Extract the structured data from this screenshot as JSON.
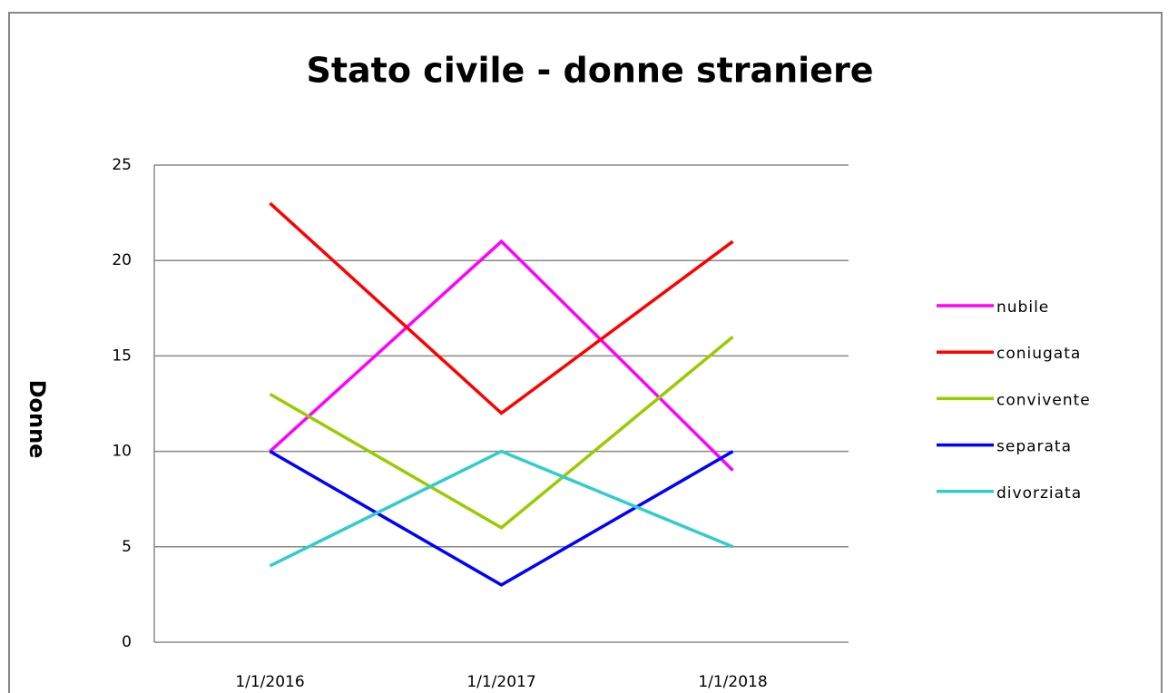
{
  "chart_data": {
    "type": "line",
    "title": "Stato civile - donne straniere",
    "y_label": "Donne",
    "categories": [
      "1/1/2016",
      "1/1/2017",
      "1/1/2018"
    ],
    "series": [
      {
        "name": "nubile",
        "color": "#ff00ff",
        "values": [
          10,
          21,
          9
        ]
      },
      {
        "name": "coniugata",
        "color": "#ff0000",
        "values": [
          23,
          12,
          21
        ]
      },
      {
        "name": "convivente",
        "color": "#99cc00",
        "values": [
          13,
          6,
          16
        ]
      },
      {
        "name": "separata",
        "color": "#0000ff",
        "values": [
          10,
          3,
          10
        ]
      },
      {
        "name": "divorziata",
        "color": "#33cccc",
        "values": [
          4,
          10,
          5
        ]
      }
    ],
    "ylim": [
      0,
      25
    ],
    "yticks": [
      0,
      5,
      10,
      15,
      20,
      25
    ],
    "grid": true,
    "legend": "right"
  }
}
